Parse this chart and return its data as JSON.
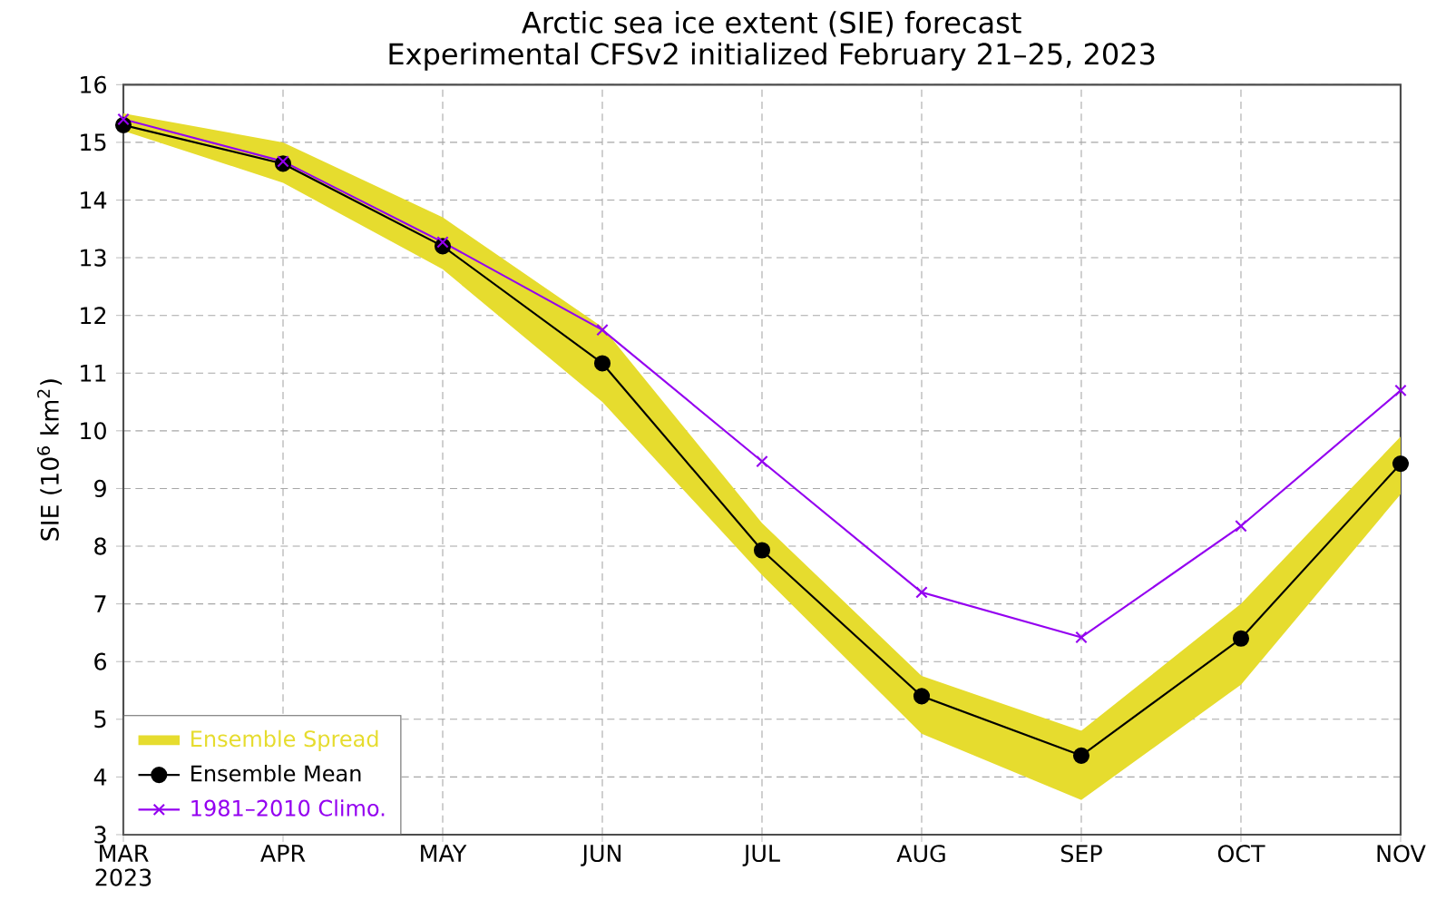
{
  "chart_data": {
    "type": "line",
    "title": "Arctic sea ice extent (SIE) forecast",
    "subtitle": "Experimental CFSv2 initialized February 21–25, 2023",
    "ylabel": "SIE (10$^{6}$ km$^{2}$)",
    "annotations": [
      "Ensemble Spread"
    ],
    "categories": [
      "MAR 2023",
      "APR",
      "MAY",
      "JUN",
      "JUL",
      "AUG",
      "SEP",
      "OCT",
      "NOV"
    ],
    "ylim": [
      3,
      16
    ],
    "yticks": [
      3,
      4,
      5,
      6,
      7,
      8,
      9,
      10,
      11,
      12,
      13,
      14,
      15,
      16
    ],
    "grid": true,
    "legend": "bottom left",
    "series": [
      {
        "name": "Ensemble Mean",
        "color": "#000000",
        "marker": "circle",
        "values": [
          15.3,
          14.63,
          13.2,
          11.17,
          7.93,
          5.4,
          4.37,
          6.4,
          9.43
        ],
        "lower": [
          15.2,
          14.3,
          12.8,
          10.5,
          7.5,
          4.75,
          3.6,
          5.6,
          8.9
        ],
        "upper": [
          15.5,
          15.0,
          13.7,
          11.8,
          8.4,
          5.75,
          4.8,
          7.0,
          9.9
        ]
      },
      {
        "name": "1981–2010 Climo.",
        "color": "#9400f0",
        "marker": "cross",
        "values": [
          15.4,
          14.67,
          13.27,
          11.75,
          9.47,
          7.2,
          6.42,
          8.35,
          10.7
        ]
      }
    ]
  }
}
